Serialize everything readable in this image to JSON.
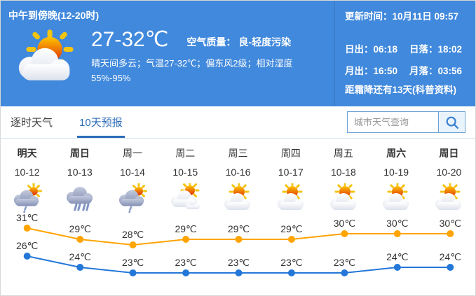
{
  "header": {
    "title": "中午到傍晚(12-20时)",
    "temp_range": "27-32℃",
    "air_quality_label": "空气质量：",
    "air_quality_value": "良-轻度污染",
    "description": "晴天间多云；气温27-32℃；偏东风2级；相对湿度55%-95%",
    "update_label": "更新时间：",
    "update_value": "10月11日 09:57",
    "sunrise_label": "日出：",
    "sunrise_value": "06:18",
    "sunset_label": "日落：",
    "sunset_value": "18:02",
    "moonrise_label": "月出：",
    "moonrise_value": "16:50",
    "moonset_label": "月落：",
    "moonset_value": "03:56",
    "frost_note": "距霜降还有13天(科普资料)"
  },
  "tabs": [
    {
      "label": "逐时天气",
      "active": false
    },
    {
      "label": "10天预报",
      "active": true
    }
  ],
  "search": {
    "placeholder": "城市天气查询",
    "button_icon": "search-icon"
  },
  "forecast": {
    "days": [
      {
        "name": "明天",
        "date": "10-12",
        "bold": true,
        "icon": "shower"
      },
      {
        "name": "周日",
        "date": "10-13",
        "bold": true,
        "icon": "rain"
      },
      {
        "name": "周一",
        "date": "10-14",
        "bold": false,
        "icon": "shower"
      },
      {
        "name": "周二",
        "date": "10-15",
        "bold": false,
        "icon": "cloudy"
      },
      {
        "name": "周三",
        "date": "10-16",
        "bold": false,
        "icon": "suncloud"
      },
      {
        "name": "周四",
        "date": "10-17",
        "bold": false,
        "icon": "suncloud"
      },
      {
        "name": "周五",
        "date": "10-18",
        "bold": false,
        "icon": "suncloud"
      },
      {
        "name": "周六",
        "date": "10-19",
        "bold": true,
        "icon": "suncloud"
      },
      {
        "name": "周日",
        "date": "10-20",
        "bold": true,
        "icon": "suncloud"
      }
    ]
  },
  "chart_data": {
    "type": "line",
    "categories": [
      "10-12",
      "10-13",
      "10-14",
      "10-15",
      "10-16",
      "10-17",
      "10-18",
      "10-19",
      "10-20"
    ],
    "series": [
      {
        "name": "high",
        "values": [
          31,
          29,
          28,
          29,
          29,
          29,
          30,
          30,
          30
        ],
        "color": "#ffa400"
      },
      {
        "name": "low",
        "values": [
          26,
          24,
          23,
          23,
          23,
          23,
          23,
          24,
          24
        ],
        "color": "#2377d8"
      }
    ],
    "unit": "℃",
    "ylim": [
      22,
      32
    ],
    "grid": false,
    "legend": false
  },
  "colors": {
    "header_bg": "#4189dc",
    "accent_blue": "#2b6cb8",
    "high_line": "#ffa400",
    "low_line": "#2377d8",
    "text": "#333333"
  }
}
